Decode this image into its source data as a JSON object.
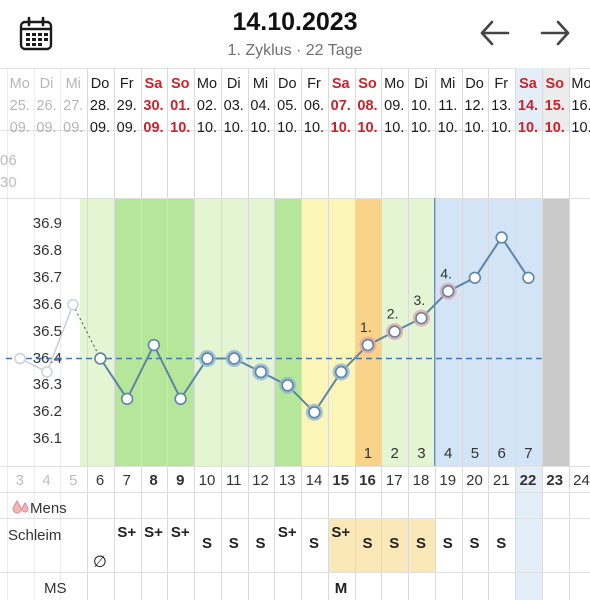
{
  "header": {
    "title": "14.10.2023",
    "subtitle": "1. Zyklus · 22 Tage"
  },
  "prev_days": [
    {
      "dow": "Mo",
      "dom": "25.",
      "month": "09."
    },
    {
      "dow": "Di",
      "dom": "26.",
      "month": "09."
    },
    {
      "dow": "Mi",
      "dom": "27.",
      "month": "09."
    }
  ],
  "days": [
    {
      "dow": "Do",
      "dom": "28.",
      "month": "09.",
      "weekend": false,
      "cd": "6",
      "temp": 36.4,
      "mucus": ""
    },
    {
      "dow": "Fr",
      "dom": "29.",
      "month": "09.",
      "weekend": false,
      "cd": "7",
      "temp": 36.25,
      "mucus": "S+"
    },
    {
      "dow": "Sa",
      "dom": "30.",
      "month": "09.",
      "weekend": true,
      "cd": "8",
      "temp": 36.45,
      "mucus": "S+"
    },
    {
      "dow": "So",
      "dom": "01.",
      "month": "10.",
      "weekend": true,
      "cd": "9",
      "temp": 36.25,
      "mucus": "S+"
    },
    {
      "dow": "Mo",
      "dom": "02.",
      "month": "10.",
      "weekend": false,
      "cd": "10",
      "temp": 36.4,
      "mucus": "S"
    },
    {
      "dow": "Di",
      "dom": "03.",
      "month": "10.",
      "weekend": false,
      "cd": "11",
      "temp": 36.4,
      "mucus": "S"
    },
    {
      "dow": "Mi",
      "dom": "04.",
      "month": "10.",
      "weekend": false,
      "cd": "12",
      "temp": 36.35,
      "mucus": "S"
    },
    {
      "dow": "Do",
      "dom": "05.",
      "month": "10.",
      "weekend": false,
      "cd": "13",
      "temp": 36.3,
      "mucus": "S+"
    },
    {
      "dow": "Fr",
      "dom": "06.",
      "month": "10.",
      "weekend": false,
      "cd": "14",
      "temp": 36.2,
      "mucus": "S"
    },
    {
      "dow": "Sa",
      "dom": "07.",
      "month": "10.",
      "weekend": true,
      "cd": "15",
      "temp": 36.35,
      "mucus": "S+"
    },
    {
      "dow": "So",
      "dom": "08.",
      "month": "10.",
      "weekend": true,
      "cd": "16",
      "temp": 36.45,
      "mucus": "S"
    },
    {
      "dow": "Mo",
      "dom": "09.",
      "month": "10.",
      "weekend": false,
      "cd": "17",
      "temp": 36.5,
      "mucus": "S"
    },
    {
      "dow": "Di",
      "dom": "10.",
      "month": "10.",
      "weekend": false,
      "cd": "18",
      "temp": 36.55,
      "mucus": "S"
    },
    {
      "dow": "Mi",
      "dom": "11.",
      "month": "10.",
      "weekend": false,
      "cd": "19",
      "temp": 36.65,
      "mucus": "S"
    },
    {
      "dow": "Do",
      "dom": "12.",
      "month": "10.",
      "weekend": false,
      "cd": "20",
      "temp": 36.7,
      "mucus": "S"
    },
    {
      "dow": "Fr",
      "dom": "13.",
      "month": "10.",
      "weekend": false,
      "cd": "21",
      "temp": 36.85,
      "mucus": "S"
    },
    {
      "dow": "Sa",
      "dom": "14.",
      "month": "10.",
      "weekend": true,
      "cd": "22",
      "temp": 36.7,
      "mucus": ""
    },
    {
      "dow": "So",
      "dom": "15.",
      "month": "10.",
      "weekend": true,
      "cd": "23",
      "temp": null,
      "mucus": ""
    },
    {
      "dow": "Mo",
      "dom": "16.",
      "month": "10.",
      "weekend": false,
      "cd": "24",
      "temp": null,
      "mucus": ""
    }
  ],
  "leftover": {
    "line1": "06",
    "line2": "30"
  },
  "prev_cycle_days": [
    "3",
    "4",
    "5"
  ],
  "chart_data": {
    "type": "line",
    "yticks": [
      "36.9",
      "36.8",
      "36.7",
      "36.6",
      "36.5",
      "36.4",
      "36.3",
      "36.2",
      "36.1"
    ],
    "ylim": [
      36.0,
      37.0
    ],
    "coverline": 36.4,
    "values": [
      36.4,
      36.25,
      36.45,
      36.25,
      36.4,
      36.4,
      36.35,
      36.3,
      36.2,
      36.35,
      36.45,
      36.5,
      36.55,
      36.65,
      36.7,
      36.85,
      36.7
    ],
    "prev_cycle_values": [
      36.4,
      36.35,
      36.6
    ],
    "temp_labels": [
      "1.",
      "2.",
      "3.",
      "4."
    ],
    "highlabels": [
      "1",
      "2",
      "3",
      "4",
      "5",
      "6",
      "7"
    ]
  },
  "rows": {
    "mens_label": "Mens",
    "mucus_label": "Schleim",
    "ms_label": "MS",
    "mens_mark": "∅",
    "ms_mark": "M"
  },
  "colors": {
    "weekend": "#d0202a",
    "green_dark": "#b6e69a",
    "green_light": "#e3f5d2",
    "yellow": "#fbf6b8",
    "orange": "#f9d38a",
    "blue": "#d2e4f6",
    "line": "#5d86a6",
    "coverline": "#3a78c7"
  },
  "icons": {
    "calendar": "calendar-icon",
    "prev": "arrow-left-icon",
    "next": "arrow-right-icon",
    "drop": "drop-icon"
  }
}
